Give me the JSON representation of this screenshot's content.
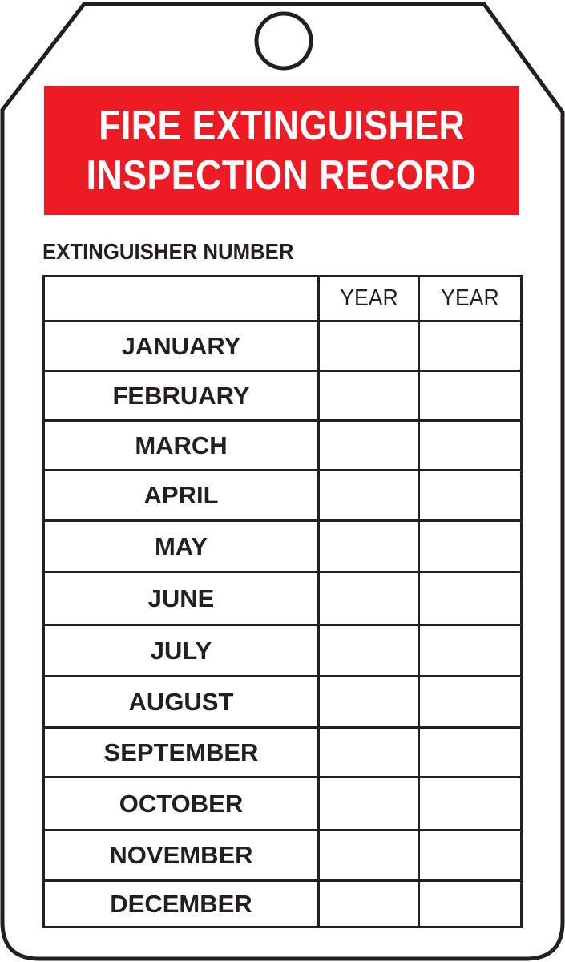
{
  "tag": {
    "colors": {
      "banner": "#ed1c24",
      "ink": "#231f20",
      "banner_text": "#ffffff"
    },
    "title_lines": [
      "FIRE EXTINGUISHER",
      "INSPECTION RECORD"
    ],
    "number_label": "EXTINGUISHER NUMBER",
    "table": {
      "headers": [
        "",
        "YEAR",
        "YEAR"
      ],
      "months": [
        "JANUARY",
        "FEBRUARY",
        "MARCH",
        "APRIL",
        "MAY",
        "JUNE",
        "JULY",
        "AUGUST",
        "SEPTEMBER",
        "OCTOBER",
        "NOVEMBER",
        "DECEMBER"
      ]
    }
  }
}
